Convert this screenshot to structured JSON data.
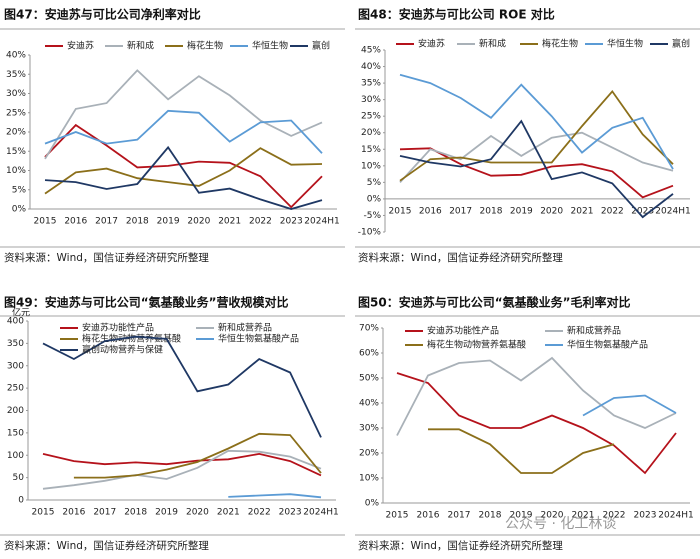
{
  "chart_data": [
    {
      "type": "line",
      "title": "图47：安迪苏与可比公司净利率对比",
      "source": "资料来源：Wind，国信证券经济研究所整理",
      "categories": [
        "2015",
        "2016",
        "2017",
        "2018",
        "2019",
        "2020",
        "2021",
        "2022",
        "2023",
        "2024H1"
      ],
      "ylim": [
        0,
        40
      ],
      "yticks": [
        {
          "value": 0,
          "label": "0%"
        },
        {
          "value": 5,
          "label": "5%"
        },
        {
          "value": 10,
          "label": "10%"
        },
        {
          "value": 15,
          "label": "15%"
        },
        {
          "value": 20,
          "label": "20%"
        },
        {
          "value": 25,
          "label": "25%"
        },
        {
          "value": 30,
          "label": "30%"
        },
        {
          "value": 35,
          "label": "35%"
        },
        {
          "value": 40,
          "label": "40%"
        }
      ],
      "series": [
        {
          "name": "安迪苏",
          "color": "#b5121b",
          "values": [
            13.5,
            21.8,
            16.5,
            10.8,
            11.2,
            12.3,
            12.0,
            8.5,
            0.5,
            8.5
          ]
        },
        {
          "name": "新和成",
          "color": "#a9b1b8",
          "values": [
            13,
            26,
            27.5,
            36,
            28.5,
            34.5,
            29.5,
            23,
            19,
            22.5
          ]
        },
        {
          "name": "梅花生物",
          "color": "#8b6f1a",
          "values": [
            4,
            9.5,
            10.5,
            8,
            7,
            6,
            10,
            15.8,
            11.5,
            11.7
          ]
        },
        {
          "name": "华恒生物",
          "color": "#5b9bd5",
          "values": [
            17,
            20,
            17,
            18,
            25.5,
            25,
            17.5,
            22.5,
            23,
            14.5
          ]
        },
        {
          "name": "赢创",
          "color": "#1f3864",
          "values": [
            7.5,
            7,
            5.2,
            6.5,
            16,
            4.2,
            5.3,
            2.5,
            0,
            2.3
          ]
        }
      ]
    },
    {
      "type": "line",
      "title": "图48：安迪苏与可比公司 ROE 对比",
      "source": "资料来源：Wind，国信证券经济研究所整理",
      "categories": [
        "2015",
        "2016",
        "2017",
        "2018",
        "2019",
        "2020",
        "2021",
        "2022",
        "2023",
        "2024H1"
      ],
      "ylim": [
        -10,
        45
      ],
      "yticks": [
        {
          "value": -10,
          "label": "-10%"
        },
        {
          "value": -5,
          "label": "-5%"
        },
        {
          "value": 0,
          "label": "0%"
        },
        {
          "value": 5,
          "label": "5%"
        },
        {
          "value": 10,
          "label": "10%"
        },
        {
          "value": 15,
          "label": "15%"
        },
        {
          "value": 20,
          "label": "20%"
        },
        {
          "value": 25,
          "label": "25%"
        },
        {
          "value": 30,
          "label": "30%"
        },
        {
          "value": 35,
          "label": "35%"
        },
        {
          "value": 40,
          "label": "40%"
        },
        {
          "value": 45,
          "label": "45%"
        }
      ],
      "series": [
        {
          "name": "安迪苏",
          "color": "#b5121b",
          "values": [
            15,
            15.3,
            10.5,
            7,
            7.3,
            9.8,
            10.5,
            8.3,
            0.5,
            4
          ]
        },
        {
          "name": "新和成",
          "color": "#a9b1b8",
          "values": [
            5,
            15,
            12,
            19,
            13,
            18.5,
            20,
            15.5,
            11,
            8.5
          ]
        },
        {
          "name": "梅花生物",
          "color": "#8b6f1a",
          "values": [
            5.5,
            12,
            12.5,
            11,
            11,
            11,
            22,
            32.5,
            19.5,
            10.5
          ]
        },
        {
          "name": "华恒生物",
          "color": "#5b9bd5",
          "values": [
            37.5,
            35,
            30.5,
            24.5,
            34.5,
            25,
            14,
            21.5,
            24.5,
            9
          ]
        },
        {
          "name": "赢创",
          "color": "#1f3864",
          "values": [
            13,
            11,
            9.8,
            12,
            23.5,
            6,
            8,
            4.7,
            -5.5,
            1.5
          ]
        }
      ]
    },
    {
      "type": "line",
      "title": "图49：安迪苏与可比公司“氨基酸业务”营收规模对比",
      "source": "资料来源：Wind，国信证券经济研究所整理",
      "y_unit": "亿元",
      "categories": [
        "2015",
        "2016",
        "2017",
        "2018",
        "2019",
        "2020",
        "2021",
        "2022",
        "2023",
        "2024H1"
      ],
      "ylim": [
        0,
        400
      ],
      "yticks": [
        0,
        50,
        100,
        150,
        200,
        250,
        300,
        350,
        400
      ],
      "series": [
        {
          "name": "安迪苏功能性产品",
          "color": "#b5121b",
          "values": [
            103,
            87,
            80,
            84,
            80,
            88,
            91,
            103,
            87,
            55
          ]
        },
        {
          "name": "新和成营养品",
          "color": "#a9b1b8",
          "values": [
            25,
            33,
            43,
            56,
            47,
            72,
            110,
            108,
            97,
            70
          ]
        },
        {
          "name": "梅花生物动物营养氨基酸",
          "color": "#8b6f1a",
          "values": [
            null,
            50,
            50,
            55,
            68,
            85,
            115,
            148,
            145,
            60
          ]
        },
        {
          "name": "华恒生物氨基酸产品",
          "color": "#5b9bd5",
          "values": [
            null,
            null,
            null,
            null,
            null,
            null,
            7,
            10,
            13,
            6
          ]
        },
        {
          "name": "赢创动物营养与保健",
          "color": "#1f3864",
          "values": [
            350,
            315,
            355,
            365,
            360,
            243,
            258,
            315,
            285,
            140
          ]
        }
      ]
    },
    {
      "type": "line",
      "title": "图50：安迪苏与可比公司“氨基酸业务”毛利率对比",
      "source": "资料来源：Wind，国信证券经济研究所整理",
      "categories": [
        "2015",
        "2016",
        "2017",
        "2018",
        "2019",
        "2020",
        "2021",
        "2022",
        "2023",
        "2024H1"
      ],
      "ylim": [
        0,
        70
      ],
      "yticks": [
        {
          "value": 0,
          "label": "0%"
        },
        {
          "value": 10,
          "label": "10%"
        },
        {
          "value": 20,
          "label": "20%"
        },
        {
          "value": 30,
          "label": "30%"
        },
        {
          "value": 40,
          "label": "40%"
        },
        {
          "value": 50,
          "label": "50%"
        },
        {
          "value": 60,
          "label": "60%"
        },
        {
          "value": 70,
          "label": "70%"
        }
      ],
      "series": [
        {
          "name": "安迪苏功能性产品",
          "color": "#b5121b",
          "values": [
            52,
            48,
            35,
            30,
            30,
            35,
            30,
            23,
            12,
            28
          ]
        },
        {
          "name": "新和成营养品",
          "color": "#a9b1b8",
          "values": [
            27,
            51,
            56,
            57,
            49,
            58,
            45,
            35,
            30,
            36
          ]
        },
        {
          "name": "梅花生物动物营养氨基酸",
          "color": "#8b6f1a",
          "values": [
            null,
            29.5,
            29.5,
            23.5,
            12,
            12,
            20,
            23.5,
            null,
            null
          ]
        },
        {
          "name": "华恒生物氨基酸产品",
          "color": "#5b9bd5",
          "values": [
            null,
            null,
            null,
            null,
            null,
            null,
            35,
            42,
            43,
            36
          ]
        }
      ]
    }
  ],
  "watermark": "公众号 · 化工林谈"
}
